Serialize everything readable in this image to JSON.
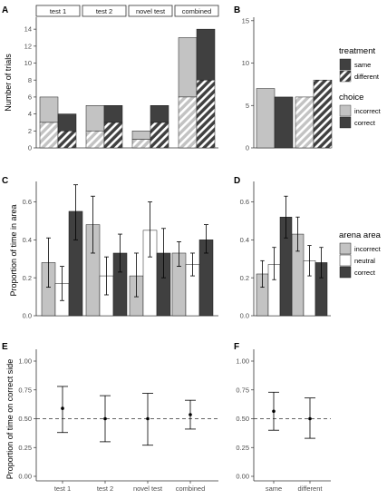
{
  "colors": {
    "light": "#c3c3c3",
    "dark": "#404040",
    "white": "#ffffff",
    "axis": "#333333",
    "hatch": "#ffffff"
  },
  "chart_data": [
    {
      "id": "A",
      "panel_label": "A",
      "type": "bar",
      "ylabel": "Number of trials",
      "ylim": [
        0,
        15
      ],
      "yticks": [
        0,
        2,
        4,
        6,
        8,
        10,
        12,
        14
      ],
      "facets": [
        "test 1",
        "test 2",
        "novel test",
        "combined"
      ],
      "bars": [
        {
          "facet": "test 1",
          "choice": "incorrect",
          "total": 6,
          "different": 3
        },
        {
          "facet": "test 1",
          "choice": "correct",
          "total": 4,
          "different": 2
        },
        {
          "facet": "test 2",
          "choice": "incorrect",
          "total": 5,
          "different": 2
        },
        {
          "facet": "test 2",
          "choice": "correct",
          "total": 5,
          "different": 3
        },
        {
          "facet": "novel test",
          "choice": "incorrect",
          "total": 2,
          "different": 1
        },
        {
          "facet": "novel test",
          "choice": "correct",
          "total": 5,
          "different": 3
        },
        {
          "facet": "combined",
          "choice": "incorrect",
          "total": 13,
          "different": 6
        },
        {
          "facet": "combined",
          "choice": "correct",
          "total": 14,
          "different": 8
        }
      ]
    },
    {
      "id": "B",
      "panel_label": "B",
      "type": "bar",
      "ylim": [
        0,
        15
      ],
      "yticks": [
        0,
        5,
        10,
        15
      ],
      "bars": [
        {
          "treatment": "same",
          "choice": "incorrect",
          "value": 7
        },
        {
          "treatment": "same",
          "choice": "correct",
          "value": 6
        },
        {
          "treatment": "different",
          "choice": "incorrect",
          "value": 6
        },
        {
          "treatment": "different",
          "choice": "correct",
          "value": 8
        }
      ]
    },
    {
      "id": "C",
      "panel_label": "C",
      "type": "bar",
      "ylabel": "Proportion of time in area",
      "ylim": [
        0,
        0.72
      ],
      "yticks": [
        "0.0",
        "0.2",
        "0.4",
        "0.6"
      ],
      "groups": [
        "test 1",
        "test 2",
        "novel test",
        "combined"
      ],
      "series": [
        {
          "name": "incorrect",
          "values": [
            0.28,
            0.48,
            0.21,
            0.33
          ],
          "lower": [
            0.15,
            0.33,
            0.1,
            0.26
          ],
          "upper": [
            0.41,
            0.63,
            0.33,
            0.39
          ]
        },
        {
          "name": "neutral",
          "values": [
            0.17,
            0.21,
            0.45,
            0.27
          ],
          "lower": [
            0.08,
            0.11,
            0.31,
            0.21
          ],
          "upper": [
            0.26,
            0.31,
            0.6,
            0.33
          ]
        },
        {
          "name": "correct",
          "values": [
            0.55,
            0.33,
            0.33,
            0.4
          ],
          "lower": [
            0.4,
            0.23,
            0.2,
            0.33
          ],
          "upper": [
            0.69,
            0.43,
            0.46,
            0.48
          ]
        }
      ]
    },
    {
      "id": "D",
      "panel_label": "D",
      "type": "bar",
      "ylim": [
        0,
        0.72
      ],
      "yticks": [
        "0.0",
        "0.2",
        "0.4",
        "0.6"
      ],
      "groups": [
        "same",
        "different"
      ],
      "series": [
        {
          "name": "incorrect",
          "values": [
            0.22,
            0.43
          ],
          "lower": [
            0.15,
            0.34
          ],
          "upper": [
            0.29,
            0.52
          ]
        },
        {
          "name": "neutral",
          "values": [
            0.27,
            0.29
          ],
          "lower": [
            0.19,
            0.21
          ],
          "upper": [
            0.36,
            0.37
          ]
        },
        {
          "name": "correct",
          "values": [
            0.52,
            0.28
          ],
          "lower": [
            0.41,
            0.2
          ],
          "upper": [
            0.63,
            0.36
          ]
        }
      ]
    },
    {
      "id": "E",
      "panel_label": "E",
      "type": "scatter",
      "ylabel": "Proportion of time on correct side",
      "ylim": [
        0,
        1
      ],
      "yticks": [
        "0.00",
        "0.25",
        "0.50",
        "0.75",
        "1.00"
      ],
      "reference_line": 0.5,
      "categories": [
        "test 1",
        "test 2",
        "novel test",
        "combined"
      ],
      "values": [
        0.59,
        0.5,
        0.5,
        0.535
      ],
      "lower": [
        0.38,
        0.3,
        0.27,
        0.41
      ],
      "upper": [
        0.78,
        0.7,
        0.72,
        0.66
      ]
    },
    {
      "id": "F",
      "panel_label": "F",
      "type": "scatter",
      "ylim": [
        0,
        1
      ],
      "yticks": [
        "0.00",
        "0.25",
        "0.50",
        "0.75",
        "1.00"
      ],
      "reference_line": 0.5,
      "categories": [
        "same",
        "different"
      ],
      "values": [
        0.565,
        0.5
      ],
      "lower": [
        0.4,
        0.33
      ],
      "upper": [
        0.73,
        0.68
      ]
    }
  ],
  "legends": {
    "treatment": {
      "title": "treatment",
      "items": [
        "same",
        "different"
      ]
    },
    "choice": {
      "title": "choice",
      "items": [
        "incorrect",
        "correct"
      ]
    },
    "arena": {
      "title": "arena area",
      "items": [
        "incorrect",
        "neutral",
        "correct"
      ]
    }
  }
}
